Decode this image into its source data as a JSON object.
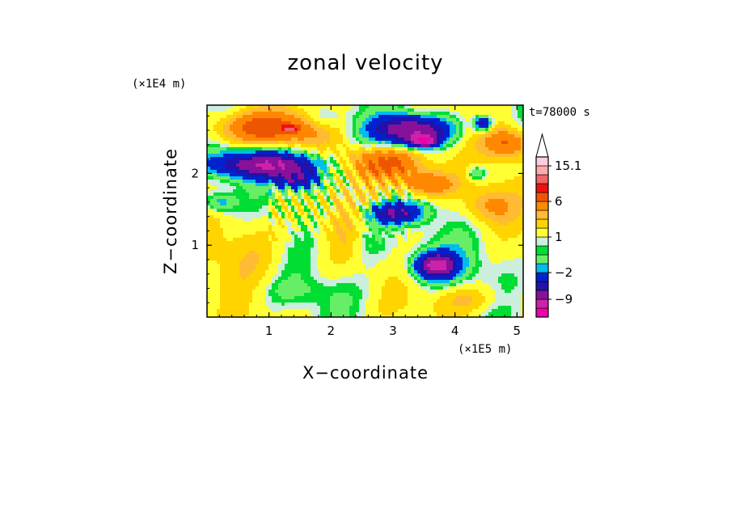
{
  "chart_data": {
    "type": "heatmap",
    "title": "zonal velocity",
    "xlabel": "X−coordinate",
    "ylabel": "Z−coordinate",
    "x_scale_label": "(×1E5 m)",
    "y_scale_label": "(×1E4 m)",
    "time_label": "t=78000 s",
    "xlim": [
      0,
      5.1
    ],
    "ylim": [
      0,
      2.95
    ],
    "x_ticks": [
      1,
      2,
      3,
      4,
      5
    ],
    "x_tick_labels": [
      "1",
      "2",
      "3",
      "4",
      "5"
    ],
    "y_ticks": [
      1,
      2
    ],
    "y_tick_labels": [
      "1",
      "2"
    ],
    "colorbar": {
      "levels": [
        -15,
        -12,
        -9,
        -6,
        -4,
        -2,
        -1,
        0,
        0.5,
        1,
        2,
        3,
        4,
        6,
        8,
        10,
        12.5,
        15.1
      ],
      "colors": [
        "#ee00aa",
        "#cc22aa",
        "#881199",
        "#2211aa",
        "#0022cc",
        "#00bbee",
        "#66ee66",
        "#00dd33",
        "#cceedd",
        "#ffff33",
        "#ffd400",
        "#ffbb33",
        "#ff8800",
        "#ee5500",
        "#ee1111",
        "#ee6666",
        "#ffaaaa",
        "#ffccdd"
      ],
      "tick_values": [
        15.1,
        6,
        1,
        -2,
        -9
      ],
      "tick_labels": [
        "15.1",
        "6",
        "1",
        "−2",
        "−9"
      ]
    },
    "features": [
      {
        "x": 0.95,
        "z": 2.63,
        "sx": 0.85,
        "sz": 0.22,
        "amp": 6
      },
      {
        "x": 1.35,
        "z": 2.62,
        "sx": 0.12,
        "sz": 0.05,
        "amp": 6
      },
      {
        "x": 1.0,
        "z": 2.12,
        "sx": 0.85,
        "sz": 0.18,
        "amp": -10
      },
      {
        "x": 1.5,
        "z": 1.9,
        "sx": 0.35,
        "sz": 0.15,
        "amp": -6
      },
      {
        "x": 0.2,
        "z": 1.6,
        "sx": 0.25,
        "sz": 0.14,
        "amp": -3
      },
      {
        "x": 3.3,
        "z": 2.6,
        "sx": 0.6,
        "sz": 0.2,
        "amp": -10
      },
      {
        "x": 3.5,
        "z": 2.45,
        "sx": 0.2,
        "sz": 0.08,
        "amp": -10
      },
      {
        "x": 2.9,
        "z": 2.15,
        "sx": 0.65,
        "sz": 0.22,
        "amp": 6
      },
      {
        "x": 3.55,
        "z": 1.85,
        "sx": 0.45,
        "sz": 0.18,
        "amp": 5
      },
      {
        "x": 3.0,
        "z": 1.45,
        "sx": 0.45,
        "sz": 0.15,
        "amp": -7
      },
      {
        "x": 2.6,
        "z": 1.1,
        "sx": 0.3,
        "sz": 0.3,
        "amp": -2
      },
      {
        "x": 3.7,
        "z": 0.72,
        "sx": 0.3,
        "sz": 0.16,
        "amp": -10
      },
      {
        "x": 3.7,
        "z": 0.72,
        "sx": 0.6,
        "sz": 0.32,
        "amp": -2
      },
      {
        "x": 4.85,
        "z": 2.42,
        "sx": 0.35,
        "sz": 0.2,
        "amp": 5
      },
      {
        "x": 4.45,
        "z": 2.7,
        "sx": 0.14,
        "sz": 0.1,
        "amp": -7
      },
      {
        "x": 4.55,
        "z": 1.55,
        "sx": 0.4,
        "sz": 0.25,
        "amp": 3
      },
      {
        "x": 4.35,
        "z": 2.0,
        "sx": 0.15,
        "sz": 0.1,
        "amp": -3
      },
      {
        "x": 0.7,
        "z": 0.95,
        "sx": 0.6,
        "sz": 0.5,
        "amp": 1.5
      },
      {
        "x": 1.5,
        "z": 0.35,
        "sx": 0.8,
        "sz": 0.2,
        "amp": -1
      },
      {
        "x": 4.2,
        "z": 0.25,
        "sx": 0.6,
        "sz": 0.2,
        "amp": 2
      },
      {
        "x": 2.2,
        "z": 1.2,
        "sx": 0.4,
        "sz": 0.5,
        "amp": 1.2
      },
      {
        "x": 1.9,
        "z": 2.75,
        "sx": 0.3,
        "sz": 0.15,
        "amp": -2
      }
    ]
  }
}
